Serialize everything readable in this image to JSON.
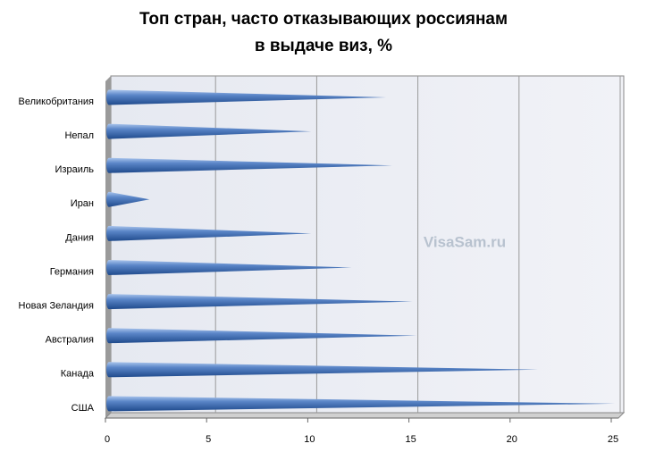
{
  "chart_data": {
    "type": "bar",
    "orientation": "horizontal",
    "title": [
      "Топ стран, часто отказывающих россиянам",
      "в выдаче виз, %"
    ],
    "categories": [
      "Великобритания",
      "Непал",
      "Израиль",
      "Иран",
      "Дания",
      "Германия",
      "Новая Зеландия",
      "Австралия",
      "Канада",
      "США"
    ],
    "values": [
      13.7,
      10,
      14,
      2,
      10,
      12,
      15,
      15.2,
      21.2,
      25
    ],
    "color": "#4f7bc0",
    "xlim": [
      0,
      25
    ],
    "xticks": [
      0,
      5,
      10,
      15,
      20,
      25
    ],
    "grid": true
  },
  "watermark": "VisaSam.ru"
}
